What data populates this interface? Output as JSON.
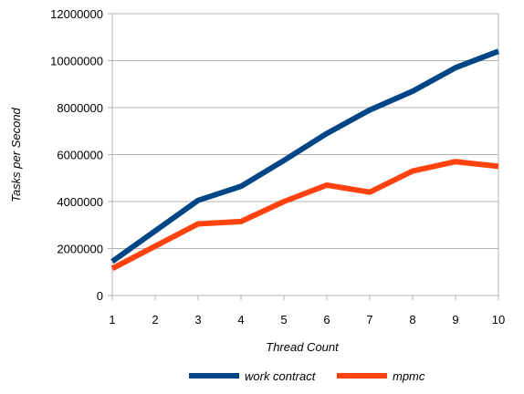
{
  "chart_data": {
    "type": "line",
    "title": "",
    "xlabel": "Thread Count",
    "ylabel": "Tasks per Second",
    "x": [
      1,
      2,
      3,
      4,
      5,
      6,
      7,
      8,
      9,
      10
    ],
    "ylim": [
      0,
      12000000
    ],
    "yticks": [
      0,
      2000000,
      4000000,
      6000000,
      8000000,
      10000000,
      12000000
    ],
    "ytick_labels": [
      "0",
      "2000000",
      "4000000",
      "6000000",
      "8000000",
      "10000000",
      "12000000"
    ],
    "xtick_labels": [
      "1",
      "2",
      "3",
      "4",
      "5",
      "6",
      "7",
      "8",
      "9",
      "10"
    ],
    "grid": "horizontal",
    "legend_position": "bottom",
    "series": [
      {
        "name": "work contract",
        "color": "#004586",
        "values": [
          1450000,
          2750000,
          4050000,
          4650000,
          5750000,
          6900000,
          7900000,
          8700000,
          9700000,
          10400000
        ]
      },
      {
        "name": "mpmc",
        "color": "#ff420e",
        "values": [
          1150000,
          2100000,
          3050000,
          3150000,
          4000000,
          4700000,
          4400000,
          5300000,
          5700000,
          5500000
        ]
      }
    ]
  }
}
